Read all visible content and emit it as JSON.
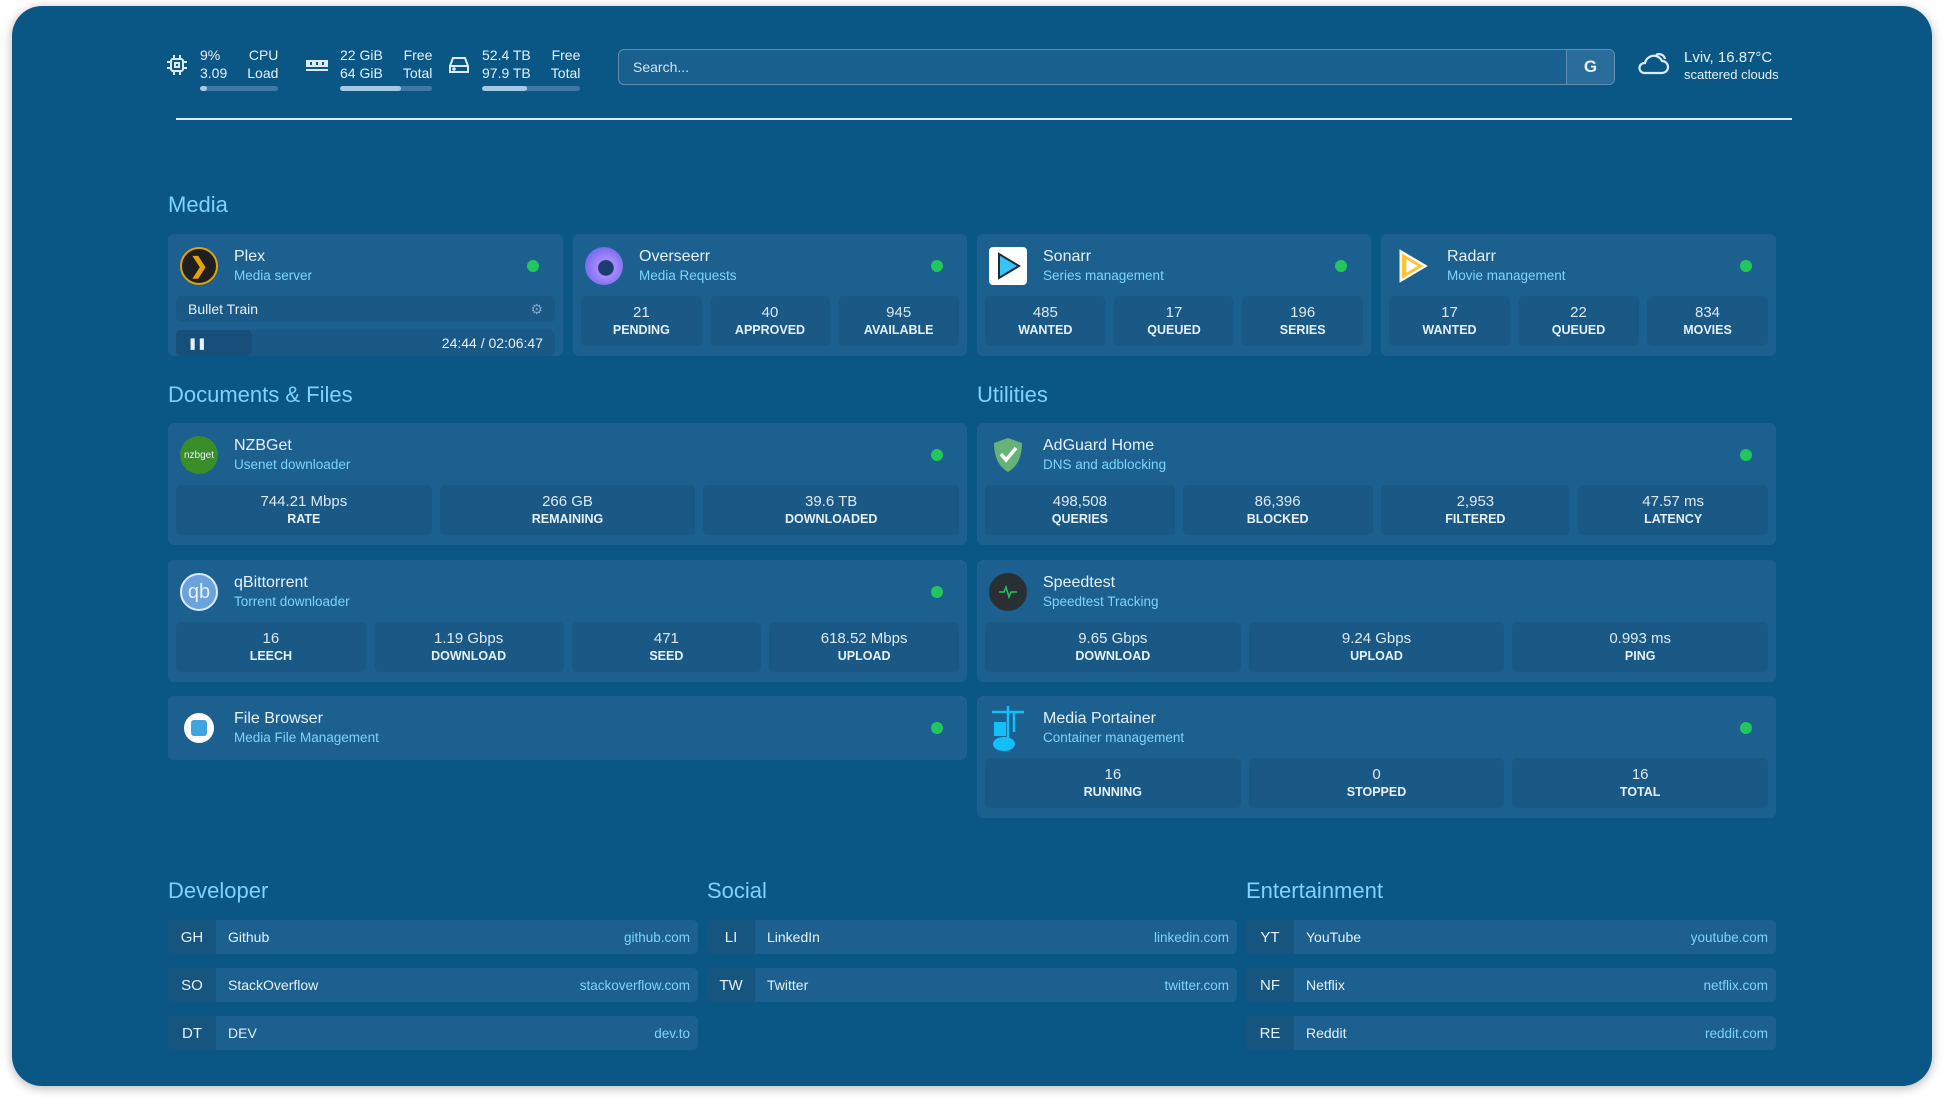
{
  "header": {
    "cpu": {
      "icon": "cpu-icon",
      "value1": "9%",
      "label1": "CPU",
      "value2": "3.09",
      "label2": "Load",
      "usage_percent": 9
    },
    "memory": {
      "icon": "memory-icon",
      "value1": "22 GiB",
      "label1": "Free",
      "value2": "64 GiB",
      "label2": "Total",
      "usage_percent": 66
    },
    "disk": {
      "icon": "disk-icon",
      "value1": "52.4 TB",
      "label1": "Free",
      "value2": "97.9 TB",
      "label2": "Total",
      "usage_percent": 46
    },
    "search": {
      "placeholder": "Search...",
      "provider": "G"
    },
    "weather": {
      "icon": "cloud-icon",
      "location_temp": "Lviv, 16.87°C",
      "condition": "scattered clouds"
    }
  },
  "sections": {
    "media": "Media",
    "documents": "Documents & Files",
    "utilities": "Utilities",
    "developer": "Developer",
    "social": "Social",
    "entertainment": "Entertainment"
  },
  "services": [
    {
      "id": "plex",
      "name": "Plex",
      "subtitle": "Media server",
      "icon": "plex-icon",
      "status": "online",
      "now_playing": {
        "title": "Bullet Train",
        "time": "24:44 / 02:06:47",
        "progress_percent": 20
      }
    },
    {
      "id": "overseerr",
      "name": "Overseerr",
      "subtitle": "Media Requests",
      "icon": "overseerr-icon",
      "status": "online",
      "stats": [
        {
          "value": "21",
          "label": "PENDING"
        },
        {
          "value": "40",
          "label": "APPROVED"
        },
        {
          "value": "945",
          "label": "AVAILABLE"
        }
      ]
    },
    {
      "id": "sonarr",
      "name": "Sonarr",
      "subtitle": "Series management",
      "icon": "sonarr-icon",
      "status": "online",
      "stats": [
        {
          "value": "485",
          "label": "WANTED"
        },
        {
          "value": "17",
          "label": "QUEUED"
        },
        {
          "value": "196",
          "label": "SERIES"
        }
      ]
    },
    {
      "id": "radarr",
      "name": "Radarr",
      "subtitle": "Movie management",
      "icon": "radarr-icon",
      "status": "online",
      "stats": [
        {
          "value": "17",
          "label": "WANTED"
        },
        {
          "value": "22",
          "label": "QUEUED"
        },
        {
          "value": "834",
          "label": "MOVIES"
        }
      ]
    },
    {
      "id": "nzbget",
      "name": "NZBGet",
      "subtitle": "Usenet downloader",
      "icon": "nzbget-icon",
      "icon_text": "nzbget",
      "status": "online",
      "stats": [
        {
          "value": "744.21 Mbps",
          "label": "RATE"
        },
        {
          "value": "266 GB",
          "label": "REMAINING"
        },
        {
          "value": "39.6 TB",
          "label": "DOWNLOADED"
        }
      ]
    },
    {
      "id": "qbittorrent",
      "name": "qBittorrent",
      "subtitle": "Torrent downloader",
      "icon": "qbittorrent-icon",
      "icon_text": "qb",
      "status": "online",
      "stats": [
        {
          "value": "16",
          "label": "LEECH"
        },
        {
          "value": "1.19 Gbps",
          "label": "DOWNLOAD"
        },
        {
          "value": "471",
          "label": "SEED"
        },
        {
          "value": "618.52 Mbps",
          "label": "UPLOAD"
        }
      ]
    },
    {
      "id": "filebrowser",
      "name": "File Browser",
      "subtitle": "Media File Management",
      "icon": "file-browser-icon",
      "status": "online"
    },
    {
      "id": "adguard",
      "name": "AdGuard Home",
      "subtitle": "DNS and adblocking",
      "icon": "adguard-shield-icon",
      "status": "online",
      "stats": [
        {
          "value": "498,508",
          "label": "QUERIES"
        },
        {
          "value": "86,396",
          "label": "BLOCKED"
        },
        {
          "value": "2,953",
          "label": "FILTERED"
        },
        {
          "value": "47.57 ms",
          "label": "LATENCY"
        }
      ]
    },
    {
      "id": "speedtest",
      "name": "Speedtest",
      "subtitle": "Speedtest Tracking",
      "icon": "speedtest-icon",
      "stats": [
        {
          "value": "9.65 Gbps",
          "label": "DOWNLOAD"
        },
        {
          "value": "9.24 Gbps",
          "label": "UPLOAD"
        },
        {
          "value": "0.993 ms",
          "label": "PING"
        }
      ]
    },
    {
      "id": "portainer",
      "name": "Media Portainer",
      "subtitle": "Container management",
      "icon": "portainer-icon",
      "status": "online",
      "stats": [
        {
          "value": "16",
          "label": "RUNNING"
        },
        {
          "value": "0",
          "label": "STOPPED"
        },
        {
          "value": "16",
          "label": "TOTAL"
        }
      ]
    }
  ],
  "bookmarks": {
    "developer": [
      {
        "abbr": "GH",
        "name": "Github",
        "url": "github.com"
      },
      {
        "abbr": "SO",
        "name": "StackOverflow",
        "url": "stackoverflow.com"
      },
      {
        "abbr": "DT",
        "name": "DEV",
        "url": "dev.to"
      }
    ],
    "social": [
      {
        "abbr": "LI",
        "name": "LinkedIn",
        "url": "linkedin.com"
      },
      {
        "abbr": "TW",
        "name": "Twitter",
        "url": "twitter.com"
      }
    ],
    "entertainment": [
      {
        "abbr": "YT",
        "name": "YouTube",
        "url": "youtube.com"
      },
      {
        "abbr": "NF",
        "name": "Netflix",
        "url": "netflix.com"
      },
      {
        "abbr": "RE",
        "name": "Reddit",
        "url": "reddit.com"
      }
    ]
  },
  "colors": {
    "background": "#0a5785",
    "card": "#1c6090",
    "accent": "#7dd3fc",
    "status_online": "#22c55e"
  }
}
